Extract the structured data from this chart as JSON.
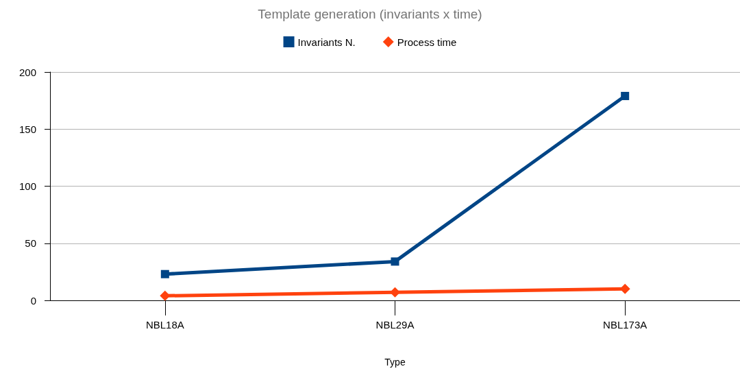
{
  "chart_data": {
    "type": "line",
    "title": "Template generation (invariants x time)",
    "xlabel": "Type",
    "categories": [
      "NBL18A",
      "NBL29A",
      "NBL173A"
    ],
    "series": [
      {
        "name": "Invariants N.",
        "color": "#004586",
        "values": [
          23,
          34,
          179
        ],
        "marker": "square"
      },
      {
        "name": "Process time",
        "color": "#ff420e",
        "values": [
          4,
          7,
          10
        ],
        "marker": "diamond"
      }
    ],
    "ylim": [
      0,
      200
    ],
    "yticks": [
      0,
      50,
      100,
      150,
      200
    ],
    "grid": "y",
    "legend": "top",
    "line_style": "solid"
  }
}
